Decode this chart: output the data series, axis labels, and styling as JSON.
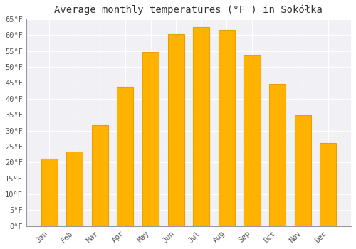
{
  "title": "Average monthly temperatures (°F ) in Sokółka",
  "months": [
    "Jan",
    "Feb",
    "Mar",
    "Apr",
    "May",
    "Jun",
    "Jul",
    "Aug",
    "Sep",
    "Oct",
    "Nov",
    "Dec"
  ],
  "values": [
    21.2,
    23.5,
    31.6,
    43.7,
    54.7,
    60.3,
    62.6,
    61.7,
    53.6,
    44.6,
    34.7,
    26.1
  ],
  "bar_color": "#FFB300",
  "bar_edge_color": "#E8A000",
  "background_color": "#FFFFFF",
  "plot_bg_color": "#F0F0F5",
  "grid_color": "#FFFFFF",
  "ylim": [
    0,
    65
  ],
  "yticks": [
    0,
    5,
    10,
    15,
    20,
    25,
    30,
    35,
    40,
    45,
    50,
    55,
    60,
    65
  ],
  "ytick_labels": [
    "0°F",
    "5°F",
    "10°F",
    "15°F",
    "20°F",
    "25°F",
    "30°F",
    "35°F",
    "40°F",
    "45°F",
    "50°F",
    "55°F",
    "60°F",
    "65°F"
  ],
  "title_fontsize": 10,
  "tick_fontsize": 7.5,
  "font_family": "monospace"
}
